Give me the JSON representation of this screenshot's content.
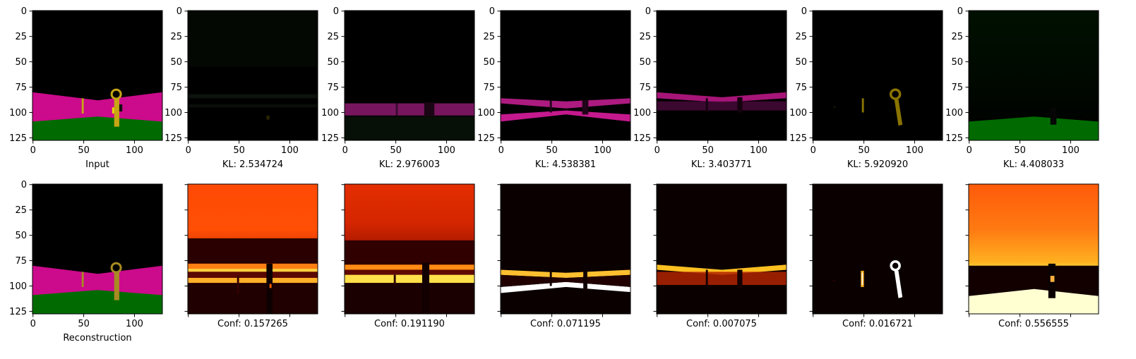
{
  "chart_data": {
    "type": "image_grid",
    "xlim": [
      0,
      127
    ],
    "ylim": [
      127,
      0
    ],
    "x_ticks": [
      "0",
      "50",
      "100"
    ],
    "y_ticks": [
      "0",
      "25",
      "50",
      "75",
      "100",
      "125"
    ],
    "top_row": [
      {
        "caption": "Input",
        "kind": "scene"
      },
      {
        "caption": "KL: 2.534724",
        "kind": "mask_dim"
      },
      {
        "caption": "KL: 2.976003",
        "kind": "mask_pink_a"
      },
      {
        "caption": "KL: 4.538381",
        "kind": "mask_pink_b"
      },
      {
        "caption": "KL: 3.403771",
        "kind": "mask_pink_c"
      },
      {
        "caption": "KL: 5.920920",
        "kind": "mask_yellow"
      },
      {
        "caption": "KL: 4.408033",
        "kind": "mask_green"
      }
    ],
    "bottom_row": [
      {
        "caption": "Reconstruction",
        "kind": "scene_recon"
      },
      {
        "caption": "Conf: 0.157265",
        "kind": "heat1"
      },
      {
        "caption": "Conf: 0.191190",
        "kind": "heat2"
      },
      {
        "caption": "Conf: 0.071195",
        "kind": "heat3"
      },
      {
        "caption": "Conf: 0.007075",
        "kind": "heat4"
      },
      {
        "caption": "Conf: 0.016721",
        "kind": "heat5"
      },
      {
        "caption": "Conf: 0.556555",
        "kind": "heat6"
      }
    ],
    "colors": {
      "pink": "#cc0a8c",
      "green": "#016b01",
      "yellow_object": "#c7a515",
      "heat_low": "#0b0000",
      "heat_high": "#ffffff"
    }
  }
}
